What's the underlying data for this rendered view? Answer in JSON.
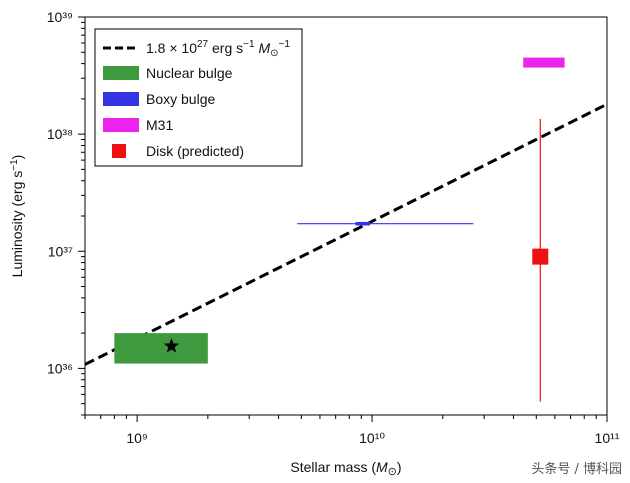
{
  "chart_data": {
    "type": "scatter",
    "title": "",
    "xlabel": "Stellar mass (M⊙)",
    "ylabel": "Luminosity (erg s⁻¹)",
    "xscale": "log",
    "yscale": "log",
    "xlim": [
      600000000.0,
      100000000000.0
    ],
    "ylim": [
      4e+35,
      1e+39
    ],
    "x_ticks": [
      {
        "value": 1000000000.0,
        "label": "10⁹"
      },
      {
        "value": 10000000000.0,
        "label": "10¹⁰"
      },
      {
        "value": 100000000000.0,
        "label": "10¹¹"
      }
    ],
    "y_ticks": [
      {
        "value": 1e+36,
        "label": "10³⁶"
      },
      {
        "value": 1e+37,
        "label": "10³⁷"
      },
      {
        "value": 1e+38,
        "label": "10³⁸"
      },
      {
        "value": 1e+39,
        "label": "10³⁹"
      }
    ],
    "legend_position": "top-left",
    "fit_line": {
      "label": "1.8 × 10²⁷ erg s⁻¹ M⊙⁻¹",
      "slope": 1.8e+27,
      "style": "dashed",
      "color": "#000000"
    },
    "series": [
      {
        "name": "Nuclear bulge",
        "color": "#3f9a3f",
        "box": {
          "x": [
            800000000.0,
            2000000000.0
          ],
          "y": [
            1.1e+36,
            2e+36
          ]
        },
        "marker": {
          "x": 1400000000.0,
          "y": 1.55e+36,
          "symbol": "star"
        }
      },
      {
        "name": "Boxy bulge",
        "color": "#3434e6",
        "box": {
          "x": [
            8500000000.0,
            9800000000.0
          ],
          "y": [
            1.66e+37,
            1.78e+37
          ]
        },
        "xerr": [
          4800000000.0,
          27000000000.0
        ],
        "y": 1.72e+37
      },
      {
        "name": "M31",
        "color": "#ee22ee",
        "box": {
          "x": [
            44000000000.0,
            66000000000.0
          ],
          "y": [
            3.7e+38,
            4.5e+38
          ]
        }
      },
      {
        "name": "Disk (predicted)",
        "color": "#ee1111",
        "point": {
          "x": 52000000000.0,
          "y": 9e+36
        },
        "yerr": [
          5.2e+35,
          1.35e+38
        ]
      }
    ]
  },
  "watermark": "头条号 / 博科园"
}
